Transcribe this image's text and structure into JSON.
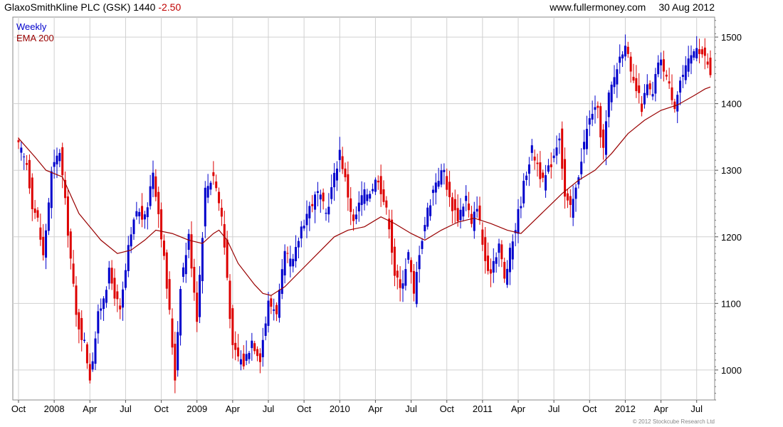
{
  "header": {
    "title": "GlaxoSmithKline PLC (GSK) 1440",
    "change": "-2.50",
    "site": "www.fullermoney.com",
    "date": "30 Aug 2012"
  },
  "footer": {
    "copyright": "© 2012 Stockcube Research Ltd"
  },
  "chart_data": {
    "type": "candlestick",
    "title": "GlaxoSmithKline PLC (GSK) 1440",
    "ylim": [
      955,
      1530
    ],
    "yticks": [
      1000,
      1100,
      1200,
      1300,
      1400,
      1500
    ],
    "x_start_week": 0,
    "x_end_week": 252,
    "x_ticks": [
      {
        "label": "Oct",
        "week": 0
      },
      {
        "label": "2008",
        "week": 13
      },
      {
        "label": "Apr",
        "week": 26
      },
      {
        "label": "Jul",
        "week": 39
      },
      {
        "label": "Oct",
        "week": 52
      },
      {
        "label": "2009",
        "week": 65
      },
      {
        "label": "Apr",
        "week": 78
      },
      {
        "label": "Jul",
        "week": 91
      },
      {
        "label": "Oct",
        "week": 104
      },
      {
        "label": "2010",
        "week": 117
      },
      {
        "label": "Apr",
        "week": 130
      },
      {
        "label": "Jul",
        "week": 143
      },
      {
        "label": "Oct",
        "week": 156
      },
      {
        "label": "2011",
        "week": 169
      },
      {
        "label": "Apr",
        "week": 182
      },
      {
        "label": "Jul",
        "week": 195
      },
      {
        "label": "Oct",
        "week": 208
      },
      {
        "label": "2012",
        "week": 221
      },
      {
        "label": "Apr",
        "week": 234
      },
      {
        "label": "Jul",
        "week": 247
      }
    ],
    "legend": [
      {
        "label": "Weekly",
        "color": "#0000cc"
      },
      {
        "label": "EMA 200",
        "color": "#990000"
      }
    ],
    "colors": {
      "up": "#0000cc",
      "down": "#dd0000",
      "ema": "#990000",
      "grid": "#d0d0d0"
    },
    "price_anchors": [
      {
        "week": 0,
        "close": 1335
      },
      {
        "week": 3,
        "close": 1310
      },
      {
        "week": 5,
        "close": 1250
      },
      {
        "week": 7,
        "close": 1225
      },
      {
        "week": 9,
        "close": 1170
      },
      {
        "week": 12,
        "close": 1295
      },
      {
        "week": 15,
        "close": 1330
      },
      {
        "week": 18,
        "close": 1210
      },
      {
        "week": 21,
        "close": 1080
      },
      {
        "week": 24,
        "close": 1040
      },
      {
        "week": 26,
        "close": 990
      },
      {
        "week": 29,
        "close": 1080
      },
      {
        "week": 33,
        "close": 1145
      },
      {
        "week": 37,
        "close": 1085
      },
      {
        "week": 40,
        "close": 1180
      },
      {
        "week": 43,
        "close": 1240
      },
      {
        "week": 46,
        "close": 1225
      },
      {
        "week": 49,
        "close": 1300
      },
      {
        "week": 52,
        "close": 1205
      },
      {
        "week": 55,
        "close": 1085
      },
      {
        "week": 57,
        "close": 990
      },
      {
        "week": 59,
        "close": 1130
      },
      {
        "week": 62,
        "close": 1200
      },
      {
        "week": 65,
        "close": 1080
      },
      {
        "week": 68,
        "close": 1270
      },
      {
        "week": 71,
        "close": 1295
      },
      {
        "week": 74,
        "close": 1230
      },
      {
        "week": 76,
        "close": 1140
      },
      {
        "week": 78,
        "close": 1030
      },
      {
        "week": 82,
        "close": 1010
      },
      {
        "week": 85,
        "close": 1045
      },
      {
        "week": 88,
        "close": 1020
      },
      {
        "week": 91,
        "close": 1100
      },
      {
        "week": 94,
        "close": 1090
      },
      {
        "week": 97,
        "close": 1170
      },
      {
        "week": 100,
        "close": 1160
      },
      {
        "week": 103,
        "close": 1215
      },
      {
        "week": 106,
        "close": 1245
      },
      {
        "week": 109,
        "close": 1265
      },
      {
        "week": 112,
        "close": 1235
      },
      {
        "week": 115,
        "close": 1290
      },
      {
        "week": 117,
        "close": 1330
      },
      {
        "week": 119,
        "close": 1285
      },
      {
        "week": 122,
        "close": 1220
      },
      {
        "week": 125,
        "close": 1260
      },
      {
        "week": 128,
        "close": 1270
      },
      {
        "week": 131,
        "close": 1290
      },
      {
        "week": 133,
        "close": 1255
      },
      {
        "week": 135,
        "close": 1220
      },
      {
        "week": 137,
        "close": 1145
      },
      {
        "week": 139,
        "close": 1120
      },
      {
        "week": 142,
        "close": 1175
      },
      {
        "week": 144,
        "close": 1110
      },
      {
        "week": 146,
        "close": 1180
      },
      {
        "week": 149,
        "close": 1240
      },
      {
        "week": 152,
        "close": 1285
      },
      {
        "week": 155,
        "close": 1300
      },
      {
        "week": 157,
        "close": 1255
      },
      {
        "week": 160,
        "close": 1230
      },
      {
        "week": 163,
        "close": 1260
      },
      {
        "week": 165,
        "close": 1215
      },
      {
        "week": 167,
        "close": 1250
      },
      {
        "week": 169,
        "close": 1190
      },
      {
        "week": 171,
        "close": 1140
      },
      {
        "week": 173,
        "close": 1165
      },
      {
        "week": 175,
        "close": 1190
      },
      {
        "week": 177,
        "close": 1135
      },
      {
        "week": 179,
        "close": 1175
      },
      {
        "week": 181,
        "close": 1215
      },
      {
        "week": 183,
        "close": 1255
      },
      {
        "week": 185,
        "close": 1300
      },
      {
        "week": 187,
        "close": 1330
      },
      {
        "week": 189,
        "close": 1310
      },
      {
        "week": 191,
        "close": 1280
      },
      {
        "week": 193,
        "close": 1300
      },
      {
        "week": 195,
        "close": 1325
      },
      {
        "week": 197,
        "close": 1355
      },
      {
        "week": 199,
        "close": 1260
      },
      {
        "week": 201,
        "close": 1240
      },
      {
        "week": 203,
        "close": 1270
      },
      {
        "week": 205,
        "close": 1320
      },
      {
        "week": 207,
        "close": 1360
      },
      {
        "week": 209,
        "close": 1390
      },
      {
        "week": 211,
        "close": 1385
      },
      {
        "week": 213,
        "close": 1330
      },
      {
        "week": 215,
        "close": 1410
      },
      {
        "week": 217,
        "close": 1440
      },
      {
        "week": 219,
        "close": 1470
      },
      {
        "week": 221,
        "close": 1495
      },
      {
        "week": 223,
        "close": 1440
      },
      {
        "week": 225,
        "close": 1420
      },
      {
        "week": 227,
        "close": 1395
      },
      {
        "week": 229,
        "close": 1425
      },
      {
        "week": 231,
        "close": 1410
      },
      {
        "week": 233,
        "close": 1465
      },
      {
        "week": 235,
        "close": 1455
      },
      {
        "week": 237,
        "close": 1425
      },
      {
        "week": 239,
        "close": 1400
      },
      {
        "week": 241,
        "close": 1435
      },
      {
        "week": 243,
        "close": 1450
      },
      {
        "week": 245,
        "close": 1470
      },
      {
        "week": 247,
        "close": 1490
      },
      {
        "week": 249,
        "close": 1475
      },
      {
        "week": 251,
        "close": 1460
      },
      {
        "week": 252,
        "close": 1440
      }
    ],
    "ema_anchors": [
      {
        "week": 0,
        "value": 1348
      },
      {
        "week": 6,
        "value": 1320
      },
      {
        "week": 10,
        "value": 1300
      },
      {
        "week": 16,
        "value": 1290
      },
      {
        "week": 22,
        "value": 1235
      },
      {
        "week": 30,
        "value": 1195
      },
      {
        "week": 36,
        "value": 1175
      },
      {
        "week": 41,
        "value": 1180
      },
      {
        "week": 46,
        "value": 1195
      },
      {
        "week": 50,
        "value": 1210
      },
      {
        "week": 56,
        "value": 1205
      },
      {
        "week": 62,
        "value": 1195
      },
      {
        "week": 67,
        "value": 1190
      },
      {
        "week": 71,
        "value": 1205
      },
      {
        "week": 73,
        "value": 1210
      },
      {
        "week": 76,
        "value": 1195
      },
      {
        "week": 80,
        "value": 1160
      },
      {
        "week": 86,
        "value": 1128
      },
      {
        "week": 89,
        "value": 1115
      },
      {
        "week": 92,
        "value": 1112
      },
      {
        "week": 97,
        "value": 1125
      },
      {
        "week": 103,
        "value": 1150
      },
      {
        "week": 109,
        "value": 1175
      },
      {
        "week": 115,
        "value": 1200
      },
      {
        "week": 120,
        "value": 1210
      },
      {
        "week": 126,
        "value": 1215
      },
      {
        "week": 132,
        "value": 1230
      },
      {
        "week": 137,
        "value": 1220
      },
      {
        "week": 143,
        "value": 1205
      },
      {
        "week": 148,
        "value": 1195
      },
      {
        "week": 154,
        "value": 1210
      },
      {
        "week": 160,
        "value": 1222
      },
      {
        "week": 166,
        "value": 1228
      },
      {
        "week": 172,
        "value": 1220
      },
      {
        "week": 178,
        "value": 1210
      },
      {
        "week": 183,
        "value": 1205
      },
      {
        "week": 188,
        "value": 1225
      },
      {
        "week": 193,
        "value": 1245
      },
      {
        "week": 198,
        "value": 1265
      },
      {
        "week": 204,
        "value": 1285
      },
      {
        "week": 210,
        "value": 1300
      },
      {
        "week": 216,
        "value": 1325
      },
      {
        "week": 222,
        "value": 1355
      },
      {
        "week": 228,
        "value": 1375
      },
      {
        "week": 234,
        "value": 1390
      },
      {
        "week": 240,
        "value": 1398
      },
      {
        "week": 246,
        "value": 1412
      },
      {
        "week": 250,
        "value": 1422
      },
      {
        "week": 252,
        "value": 1425
      }
    ]
  }
}
